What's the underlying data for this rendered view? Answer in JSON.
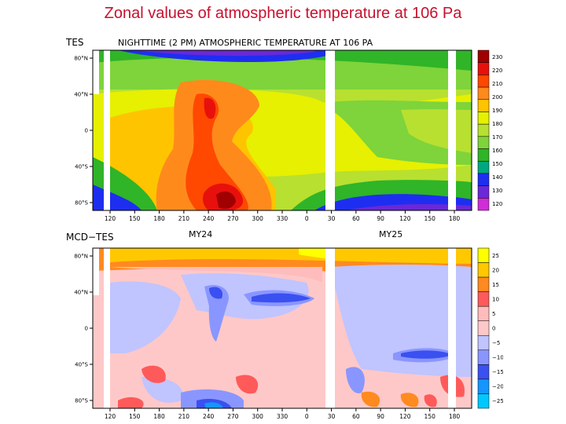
{
  "title": "Zonal values of atmospheric temperature at 106 Pa",
  "chart_data": [
    {
      "type": "heatmap",
      "panel_label": "TES",
      "title": "NIGHTTIME (2 PM) ATMOSPHERIC TEMPERATURE AT 106 PA",
      "x_ticks": [
        "120",
        "150",
        "180",
        "210",
        "240",
        "270",
        "300",
        "330",
        "0",
        "30",
        "60",
        "90",
        "120",
        "150",
        "180"
      ],
      "y_ticks": [
        "80°N",
        "40°N",
        "0",
        "40°S",
        "80°S"
      ],
      "colorbar": {
        "ticks": [
          "230",
          "220",
          "210",
          "200",
          "190",
          "180",
          "170",
          "160",
          "150",
          "140",
          "130",
          "120"
        ],
        "colors": [
          "#a00000",
          "#e8100c",
          "#ff4800",
          "#ff8a1c",
          "#ffc400",
          "#e6f000",
          "#b8e030",
          "#7ed43a",
          "#30b428",
          "#00a880",
          "#1e2ef0",
          "#6a28d8",
          "#d02cd8"
        ]
      }
    },
    {
      "type": "heatmap",
      "panel_label": "MCD−TES",
      "year_labels": [
        "MY24",
        "MY25"
      ],
      "x_ticks": [
        "120",
        "150",
        "180",
        "210",
        "240",
        "270",
        "300",
        "330",
        "0",
        "30",
        "60",
        "90",
        "120",
        "150",
        "180"
      ],
      "y_ticks": [
        "80°N",
        "40°N",
        "0",
        "40°S",
        "80°S"
      ],
      "colorbar": {
        "ticks": [
          "25",
          "20",
          "15",
          "10",
          "5",
          "0",
          "−5",
          "−10",
          "−15",
          "−20",
          "−25"
        ],
        "colors": [
          "#ffff00",
          "#ffc800",
          "#ff8a20",
          "#ff5a5a",
          "#ffbcbc",
          "#ffc8c8",
          "#c0c4ff",
          "#8a96ff",
          "#3a50f0",
          "#1496ff",
          "#00c8ff"
        ]
      }
    }
  ]
}
